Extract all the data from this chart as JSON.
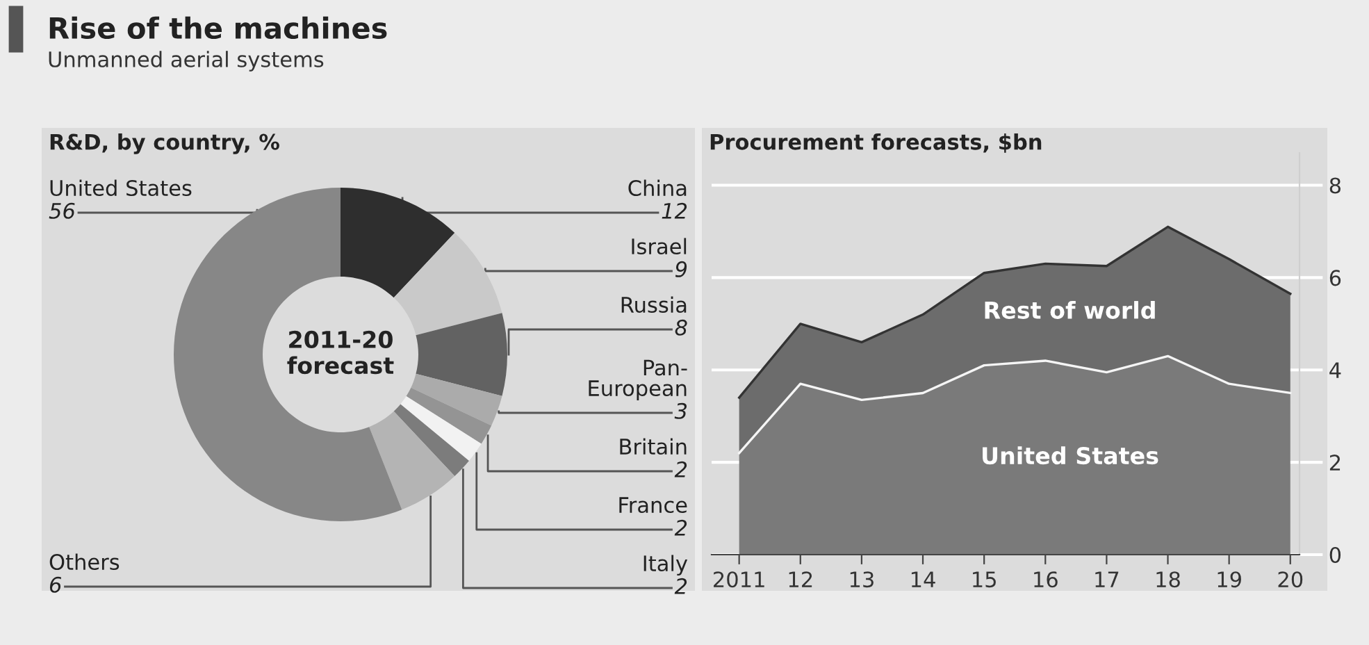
{
  "chart_data": [
    {
      "type": "other",
      "title": "Rise of the machines",
      "subtitle": "Unmanned aerial systems"
    },
    {
      "type": "donut",
      "title": "R&D, by country, %",
      "categories": [
        "China",
        "Israel",
        "Russia",
        "Pan-\nEuropean",
        "Britain",
        "France",
        "Italy",
        "Others",
        "United States"
      ],
      "values": [
        12,
        9,
        8,
        3,
        2,
        2,
        2,
        6,
        56
      ],
      "colors": [
        "#2e2e2e",
        "#c9c9c9",
        "#626262",
        "#ababab",
        "#949494",
        "#f2f2f2",
        "#7c7c7c",
        "#b4b4b4",
        "#878787"
      ],
      "data_labels": true,
      "annotations": [
        "2011-20\nforecast"
      ]
    },
    {
      "type": "area",
      "title": "Procurement forecasts, $bn",
      "categories": [
        "2011",
        "12",
        "13",
        "14",
        "15",
        "16",
        "17",
        "18",
        "19",
        "20"
      ],
      "stacked": true,
      "series": [
        {
          "name": "United States",
          "color": "#7a7a7a",
          "values": [
            2.2,
            3.7,
            3.35,
            3.5,
            4.1,
            4.2,
            3.95,
            4.3,
            3.7,
            3.5
          ]
        },
        {
          "name": "Rest of world",
          "color": "#6c6c6c",
          "values": [
            1.2,
            1.3,
            1.25,
            1.7,
            2.0,
            2.1,
            2.3,
            2.8,
            2.7,
            2.15
          ]
        }
      ],
      "ylim": [
        0,
        8.7
      ],
      "yticks": [
        0,
        2,
        4,
        6,
        8
      ],
      "grid": "y",
      "legend": false
    }
  ]
}
